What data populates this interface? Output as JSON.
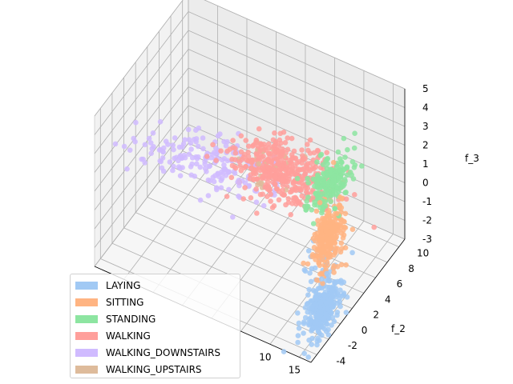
{
  "chart_data": {
    "type": "scatter",
    "projection": "3d",
    "xlabel": "",
    "ylabel": "f_2",
    "zlabel": "f_3",
    "x_ticks": [
      "10",
      "15"
    ],
    "y_ticks": [
      "-4",
      "-2",
      "0",
      "2",
      "4",
      "6",
      "8",
      "10"
    ],
    "z_ticks": [
      "-3",
      "-2",
      "-1",
      "0",
      "1",
      "2",
      "3",
      "4",
      "5"
    ],
    "xlim": [
      -20,
      17
    ],
    "ylim": [
      -5,
      11
    ],
    "zlim": [
      -3,
      5
    ],
    "grid": true,
    "legend_position": "lower-left",
    "series": [
      {
        "name": "LAYING",
        "color": "#a1c9f4",
        "clusters": [
          {
            "x": 15,
            "y": -1,
            "z": -2,
            "sx": 0.8,
            "sy": 1.2,
            "sz": 0.6,
            "n": 320
          },
          {
            "x": 13.5,
            "y": 0,
            "z": 0,
            "sx": 1.5,
            "sy": 1.5,
            "sz": 0.4,
            "n": 20
          }
        ]
      },
      {
        "name": "SITTING",
        "color": "#ffb482",
        "clusters": [
          {
            "x": 14.5,
            "y": 0.5,
            "z": 1.2,
            "sx": 0.6,
            "sy": 1.2,
            "sz": 0.9,
            "n": 260
          }
        ]
      },
      {
        "name": "STANDING",
        "color": "#8de5a1",
        "clusters": [
          {
            "x": 13.5,
            "y": 1.5,
            "z": 3.4,
            "sx": 1.2,
            "sy": 1.5,
            "sz": 0.45,
            "n": 220
          }
        ]
      },
      {
        "name": "WALKING",
        "color": "#ff9f9b",
        "clusters": [
          {
            "x": 5,
            "y": 2,
            "z": 2.6,
            "sx": 4,
            "sy": 1.5,
            "sz": 0.35,
            "n": 420
          }
        ]
      },
      {
        "name": "WALKING_DOWNSTAIRS",
        "color": "#d0bbff",
        "clusters": [
          {
            "x": -5,
            "y": 1.5,
            "z": 1.8,
            "sx": 5,
            "sy": 1.5,
            "sz": 0.4,
            "n": 160
          },
          {
            "x": -15,
            "y": 1,
            "z": 1,
            "sx": 3,
            "sy": 1,
            "sz": 0.4,
            "n": 25
          }
        ]
      },
      {
        "name": "WALKING_UPSTAIRS",
        "color": "#debb9b",
        "clusters": [
          {
            "x": 2,
            "y": 2,
            "z": 2.4,
            "sx": 3,
            "sy": 1.2,
            "sz": 0.3,
            "n": 25
          }
        ]
      }
    ]
  }
}
